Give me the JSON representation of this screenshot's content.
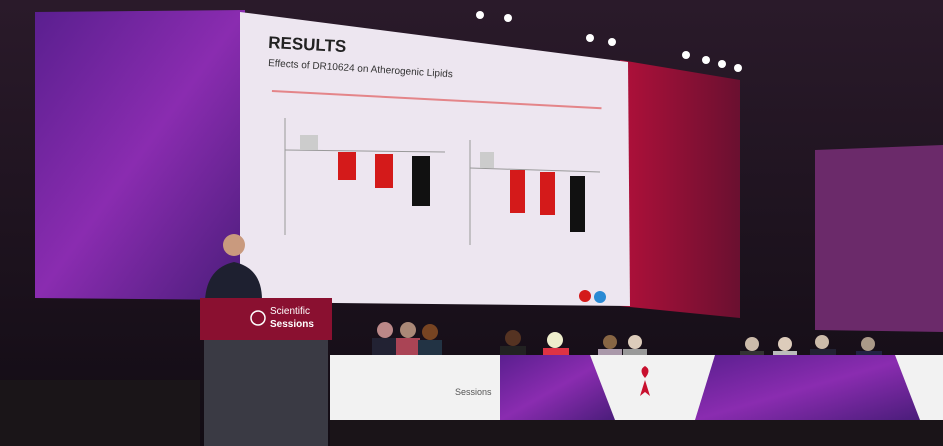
{
  "slide": {
    "title": "RESULTS",
    "subtitle": "Effects of DR10624 on Atherogenic Lipids"
  },
  "podium": {
    "line1": "Scientific",
    "line2": "Sessions"
  },
  "banner": {
    "text": "Sessions"
  }
}
